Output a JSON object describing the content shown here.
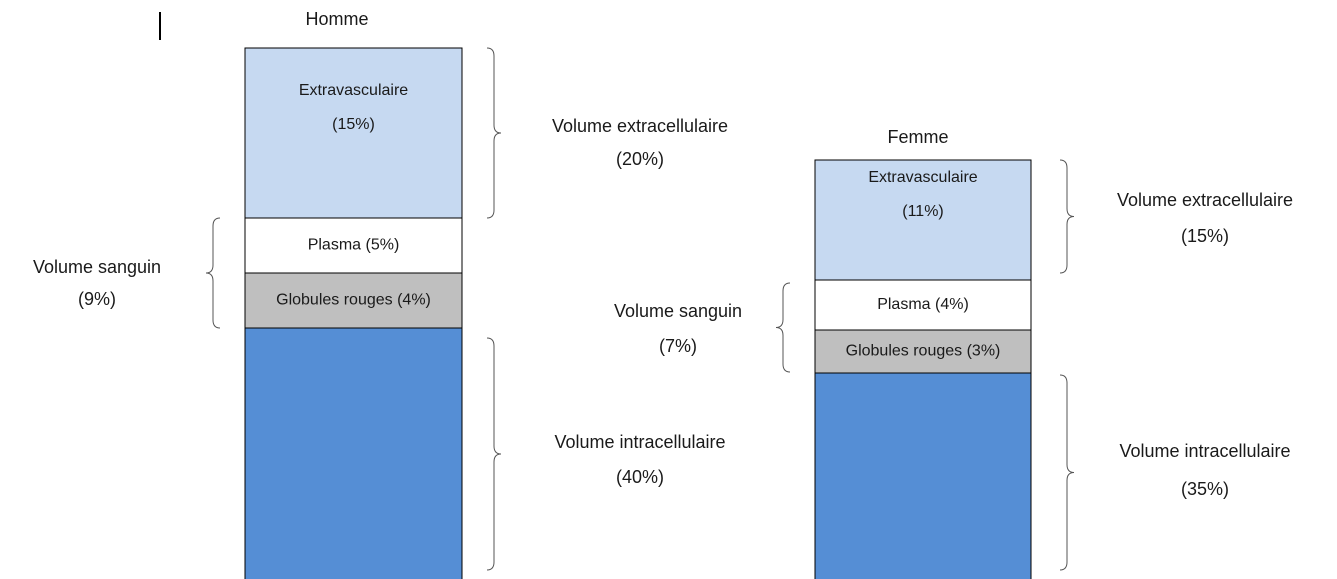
{
  "columns": [
    {
      "title": "Homme",
      "segments": [
        {
          "lines": [
            "Extravasculaire",
            "(15%)"
          ]
        },
        {
          "lines": [
            "Plasma (5%)"
          ]
        },
        {
          "lines": [
            "Globules rouges (4%)"
          ]
        },
        {
          "lines": []
        }
      ],
      "braces": [
        {
          "lines": [
            "Volume extracellulaire",
            "(20%)"
          ]
        },
        {
          "lines": [
            "Volume sanguin",
            "(9%)"
          ]
        },
        {
          "lines": [
            "Volume intracellulaire",
            "(40%)"
          ]
        }
      ]
    },
    {
      "title": "Femme",
      "segments": [
        {
          "lines": [
            "Extravasculaire",
            "(11%)"
          ]
        },
        {
          "lines": [
            "Plasma (4%)"
          ]
        },
        {
          "lines": [
            "Globules rouges (3%)"
          ]
        },
        {
          "lines": []
        }
      ],
      "braces": [
        {
          "lines": [
            "Volume extracellulaire",
            "(15%)"
          ]
        },
        {
          "lines": [
            "Volume sanguin",
            "(7%)"
          ]
        },
        {
          "lines": [
            "Volume intracellulaire",
            "(35%)"
          ]
        }
      ]
    }
  ]
}
